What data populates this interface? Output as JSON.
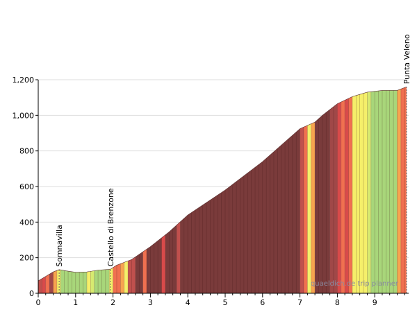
{
  "chart_data": {
    "type": "area",
    "xlim": [
      0,
      9.85
    ],
    "ylim": [
      0,
      1200
    ],
    "x_ticks": [
      0,
      1,
      2,
      3,
      4,
      5,
      6,
      7,
      8,
      9
    ],
    "y_ticks": [
      0,
      200,
      400,
      600,
      800,
      1000,
      1200
    ],
    "y_tick_labels": [
      "0",
      "200",
      "400",
      "600",
      "800",
      "1,000",
      "1,200"
    ],
    "grid": "horizontal",
    "elevation_profile": [
      {
        "x": 0.0,
        "y": 70
      },
      {
        "x": 0.2,
        "y": 95
      },
      {
        "x": 0.4,
        "y": 120
      },
      {
        "x": 0.56,
        "y": 133
      },
      {
        "x": 0.75,
        "y": 126
      },
      {
        "x": 1.0,
        "y": 118
      },
      {
        "x": 1.3,
        "y": 120
      },
      {
        "x": 1.6,
        "y": 130
      },
      {
        "x": 1.93,
        "y": 135
      },
      {
        "x": 2.1,
        "y": 158
      },
      {
        "x": 2.5,
        "y": 190
      },
      {
        "x": 3.0,
        "y": 262
      },
      {
        "x": 3.5,
        "y": 345
      },
      {
        "x": 4.0,
        "y": 440
      },
      {
        "x": 5.0,
        "y": 580
      },
      {
        "x": 6.0,
        "y": 740
      },
      {
        "x": 7.0,
        "y": 925
      },
      {
        "x": 7.4,
        "y": 962
      },
      {
        "x": 7.6,
        "y": 1000
      },
      {
        "x": 8.0,
        "y": 1065
      },
      {
        "x": 8.4,
        "y": 1105
      },
      {
        "x": 8.8,
        "y": 1130
      },
      {
        "x": 9.2,
        "y": 1140
      },
      {
        "x": 9.6,
        "y": 1140
      },
      {
        "x": 9.85,
        "y": 1160
      }
    ],
    "gradient_bands": [
      {
        "x0": 0.0,
        "x1": 0.1,
        "color": "#c0504d"
      },
      {
        "x0": 0.1,
        "x1": 0.2,
        "color": "#d84a4a"
      },
      {
        "x0": 0.2,
        "x1": 0.3,
        "color": "#f07050"
      },
      {
        "x0": 0.3,
        "x1": 0.4,
        "color": "#a04848"
      },
      {
        "x0": 0.4,
        "x1": 0.5,
        "color": "#f7a34f"
      },
      {
        "x0": 0.5,
        "x1": 0.6,
        "color": "#f5ef6a"
      },
      {
        "x0": 0.6,
        "x1": 1.3,
        "color": "#a8d67a"
      },
      {
        "x0": 1.3,
        "x1": 1.4,
        "color": "#f5ef6a"
      },
      {
        "x0": 1.4,
        "x1": 1.5,
        "color": "#d7ea70"
      },
      {
        "x0": 1.5,
        "x1": 1.9,
        "color": "#a8d67a"
      },
      {
        "x0": 1.9,
        "x1": 2.0,
        "color": "#f5ef6a"
      },
      {
        "x0": 2.0,
        "x1": 2.2,
        "color": "#f07050"
      },
      {
        "x0": 2.2,
        "x1": 2.3,
        "color": "#f7a34f"
      },
      {
        "x0": 2.3,
        "x1": 2.4,
        "color": "#f5ef6a"
      },
      {
        "x0": 2.4,
        "x1": 2.6,
        "color": "#c0504d"
      },
      {
        "x0": 2.6,
        "x1": 2.8,
        "color": "#7a3b3b"
      },
      {
        "x0": 2.8,
        "x1": 2.9,
        "color": "#f07050"
      },
      {
        "x0": 2.9,
        "x1": 3.3,
        "color": "#7a3b3b"
      },
      {
        "x0": 3.3,
        "x1": 3.4,
        "color": "#d84a4a"
      },
      {
        "x0": 3.4,
        "x1": 3.7,
        "color": "#7a3b3b"
      },
      {
        "x0": 3.7,
        "x1": 3.8,
        "color": "#c0504d"
      },
      {
        "x0": 3.8,
        "x1": 7.0,
        "color": "#7a3b3b"
      },
      {
        "x0": 7.0,
        "x1": 7.1,
        "color": "#c0504d"
      },
      {
        "x0": 7.1,
        "x1": 7.2,
        "color": "#f07050"
      },
      {
        "x0": 7.2,
        "x1": 7.3,
        "color": "#f5ef6a"
      },
      {
        "x0": 7.3,
        "x1": 7.4,
        "color": "#f7a34f"
      },
      {
        "x0": 7.4,
        "x1": 7.8,
        "color": "#7a3b3b"
      },
      {
        "x0": 7.8,
        "x1": 8.0,
        "color": "#a04848"
      },
      {
        "x0": 8.0,
        "x1": 8.1,
        "color": "#d84a4a"
      },
      {
        "x0": 8.1,
        "x1": 8.2,
        "color": "#f07050"
      },
      {
        "x0": 8.2,
        "x1": 8.3,
        "color": "#d84a4a"
      },
      {
        "x0": 8.3,
        "x1": 8.4,
        "color": "#f07050"
      },
      {
        "x0": 8.4,
        "x1": 8.8,
        "color": "#f5ef6a"
      },
      {
        "x0": 8.8,
        "x1": 8.9,
        "color": "#d7ea70"
      },
      {
        "x0": 8.9,
        "x1": 9.6,
        "color": "#a8d67a"
      },
      {
        "x0": 9.6,
        "x1": 9.7,
        "color": "#f7a34f"
      },
      {
        "x0": 9.7,
        "x1": 9.85,
        "color": "#f07050"
      }
    ],
    "waypoints": [
      {
        "name": "Somnavilla",
        "x": 0.56,
        "y": 133
      },
      {
        "name": "Castello di Brenzone",
        "x": 1.93,
        "y": 135
      },
      {
        "name": "Punta Veleno",
        "x": 9.85,
        "y": 1160
      }
    ],
    "watermark": "quaeldich.de trip planner"
  }
}
